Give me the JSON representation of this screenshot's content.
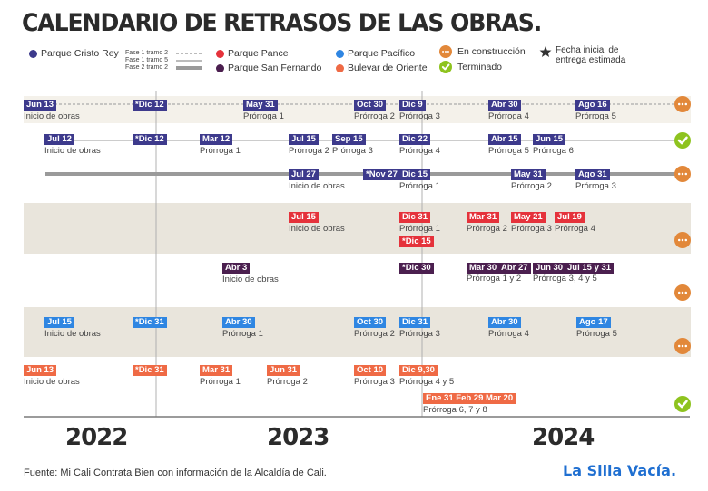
{
  "title": "CALENDARIO DE RETRASOS DE LAS OBRAS.",
  "legend": {
    "parks": [
      {
        "name": "Parque Cristo Rey",
        "color": "#3d3a8c"
      },
      {
        "name": "Parque Pance",
        "color": "#e5323b"
      },
      {
        "name": "Parque Pacífico",
        "color": "#2f86e2"
      },
      {
        "name": "Parque San Fernando",
        "color": "#4b1f4f"
      },
      {
        "name": "Bulevar de Oriente",
        "color": "#ef6a45"
      }
    ],
    "phases": [
      "Fase 1 tramo 2",
      "Fase 1 tramo 5",
      "Fase 2 tramo 2"
    ],
    "status": [
      "En construcción",
      "Terminado"
    ],
    "star_note": "Fecha inicial de entrega estimada"
  },
  "colors": {
    "construccion": "#e2883a",
    "terminado": "#8ec31f",
    "band": "#e9e5dc",
    "axis": "#8a8a8a"
  },
  "chart_data": {
    "type": "timeline",
    "x_years": [
      "2022",
      "2023",
      "2024"
    ],
    "rows": [
      {
        "park": "Parque Cristo Rey",
        "phase": "Fase 1 tramo 2",
        "status": "En construcción",
        "events": [
          {
            "tag": "Jun 13",
            "label": "Inicio de obras"
          },
          {
            "tag": "*Dic 12",
            "label": ""
          },
          {
            "tag": "May 31",
            "label": "Prórroga 1"
          },
          {
            "tag": "Oct 30",
            "label": "Prórroga 2"
          },
          {
            "tag": "Dic 9",
            "label": "Prórroga 3"
          },
          {
            "tag": "Abr 30",
            "label": "Prórroga 4"
          },
          {
            "tag": "Ago 16",
            "label": "Prórroga 5"
          }
        ]
      },
      {
        "park": "Parque Cristo Rey",
        "phase": "Fase 1 tramo 5",
        "status": "Terminado",
        "events": [
          {
            "tag": "Jul 12",
            "label": "Inicio de obras"
          },
          {
            "tag": "*Dic 12",
            "label": ""
          },
          {
            "tag": "Mar 12",
            "label": "Prórroga 1"
          },
          {
            "tag": "Jul 15",
            "label": "Prórroga 2"
          },
          {
            "tag": "Sep 15",
            "label": "Prórroga 3"
          },
          {
            "tag": "Dic 22",
            "label": "Prórroga 4"
          },
          {
            "tag": "Abr 15",
            "label": "Prórroga 5"
          },
          {
            "tag": "Jun 15",
            "label": "Prórroga 6"
          }
        ]
      },
      {
        "park": "Parque Cristo Rey",
        "phase": "Fase 2 tramo 2",
        "status": "En construcción",
        "events": [
          {
            "tag": "Jul 27",
            "label": "Inicio de obras"
          },
          {
            "tag": "*Nov 27",
            "label": ""
          },
          {
            "tag": "Dic 15",
            "label": "Prórroga 1"
          },
          {
            "tag": "May 31",
            "label": "Prórroga 2"
          },
          {
            "tag": "Ago 31",
            "label": "Prórroga 3"
          }
        ]
      },
      {
        "park": "Parque Pance",
        "status": "En construcción",
        "events": [
          {
            "tag": "Jul 15",
            "label": "Inicio de obras"
          },
          {
            "tag": "Dic 31",
            "label": "Prórroga 1"
          },
          {
            "tag": "*Dic 15",
            "label": ""
          },
          {
            "tag": "Mar 31",
            "label": "Prórroga 2"
          },
          {
            "tag": "May 21",
            "label": "Prórroga 3"
          },
          {
            "tag": "Jul 19",
            "label": "Prórroga 4"
          }
        ]
      },
      {
        "park": "Parque San Fernando",
        "status": "En construcción",
        "events": [
          {
            "tag": "Abr 3",
            "label": "Inicio de obras"
          },
          {
            "tag": "*Dic 30",
            "label": ""
          },
          {
            "tag": "Mar 30",
            "label": ""
          },
          {
            "tag": "Abr 27",
            "label": ""
          },
          {
            "tag": "Jun 30",
            "label": ""
          },
          {
            "tag": "Jul 15 y 31",
            "label": ""
          },
          {
            "tag": "",
            "label": "Prórroga 1 y 2"
          },
          {
            "tag": "",
            "label": "Prórroga 3, 4 y 5"
          }
        ]
      },
      {
        "park": "Parque Pacífico",
        "status": "En construcción",
        "events": [
          {
            "tag": "Jul 15",
            "label": "Inicio de obras"
          },
          {
            "tag": "*Dic 31",
            "label": ""
          },
          {
            "tag": "Abr 30",
            "label": "Prórroga 1"
          },
          {
            "tag": "Oct 30",
            "label": "Prórroga 2"
          },
          {
            "tag": "Dic 31",
            "label": "Prórroga 3"
          },
          {
            "tag": "Abr 30",
            "label": "Prórroga 4"
          },
          {
            "tag": "Ago 17",
            "label": "Prórroga 5"
          }
        ]
      },
      {
        "park": "Bulevar de Oriente",
        "status": "Terminado",
        "events": [
          {
            "tag": "Jun 13",
            "label": "Inicio de obras"
          },
          {
            "tag": "*Dic 31",
            "label": ""
          },
          {
            "tag": "Mar 31",
            "label": "Prórroga 1"
          },
          {
            "tag": "Jun 31",
            "label": "Prórroga 2"
          },
          {
            "tag": "Oct 10",
            "label": "Prórroga 3"
          },
          {
            "tag": "Dic 9,30",
            "label": "Prórroga 4 y 5"
          },
          {
            "tag": "Ene 31  Feb 29  Mar 20",
            "label": "Prórroga 6, 7 y 8"
          }
        ]
      }
    ]
  },
  "footer": {
    "source": "Fuente: Mi Cali Contrata Bien con información de la Alcaldía de Cali.",
    "logo": "La Silla Vacía."
  }
}
